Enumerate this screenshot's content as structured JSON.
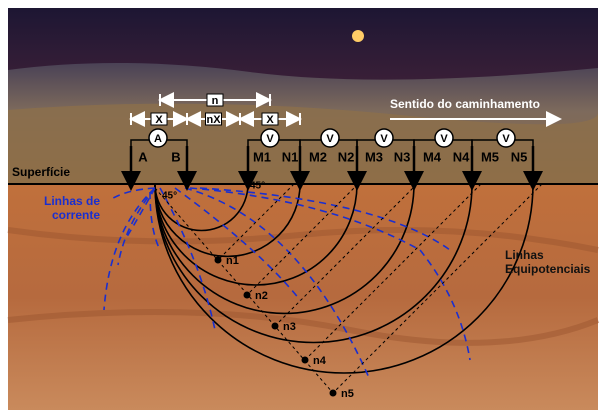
{
  "header": {
    "direction": "Sentido do caminhamento"
  },
  "labels": {
    "surface": "Superfície",
    "current_lines": [
      "Linhas de",
      "corrente"
    ],
    "equipotential_lines": [
      "Linhas",
      "Equipotenciais"
    ]
  },
  "spacing": {
    "n": "n",
    "x_left": "X",
    "nx": "nX",
    "x_right": "X"
  },
  "instruments": {
    "ammeter": "A",
    "voltmeters": [
      "V",
      "V",
      "V",
      "V",
      "V"
    ]
  },
  "electrodes": [
    "A",
    "B",
    "M1",
    "N1",
    "M2",
    "N2",
    "M3",
    "N3",
    "M4",
    "N4",
    "M5",
    "N5"
  ],
  "angles": [
    "45°",
    "45°"
  ],
  "depth_points": [
    "n1",
    "n2",
    "n3",
    "n4",
    "n5"
  ]
}
